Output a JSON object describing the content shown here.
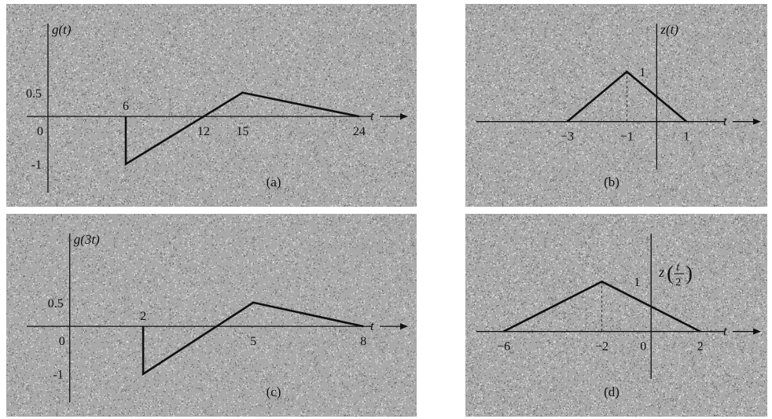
{
  "charts": {
    "a": {
      "caption": "(a)",
      "ylabel": "g(t)",
      "xlabel": "t",
      "x_ticks": [
        {
          "value": 0,
          "label": "0"
        },
        {
          "value": 12,
          "label": "12"
        },
        {
          "value": 15,
          "label": "15"
        },
        {
          "value": 24,
          "label": "24"
        }
      ],
      "y_ticks": [
        {
          "value": 0.5,
          "label": "0.5"
        },
        {
          "value": -1,
          "label": "-1"
        }
      ],
      "annotations": [
        {
          "x": 6,
          "y": 0,
          "label": "6"
        }
      ]
    },
    "b": {
      "caption": "(b)",
      "ylabel": "z(t)",
      "xlabel": "t",
      "x_ticks": [
        {
          "value": -3,
          "label": "−3"
        },
        {
          "value": -1,
          "label": "−1"
        },
        {
          "value": 1,
          "label": "1"
        }
      ],
      "y_ticks": [
        {
          "value": 1,
          "label": "1"
        }
      ]
    },
    "c": {
      "caption": "(c)",
      "ylabel": "g(3t)",
      "xlabel": "t",
      "x_ticks": [
        {
          "value": 0,
          "label": "0"
        },
        {
          "value": 5,
          "label": "5"
        },
        {
          "value": 8,
          "label": "8"
        }
      ],
      "y_ticks": [
        {
          "value": 0.5,
          "label": "0.5"
        },
        {
          "value": -1,
          "label": "-1"
        }
      ],
      "annotations": [
        {
          "x": 2,
          "y": 0,
          "label": "2"
        }
      ]
    },
    "d": {
      "caption": "(d)",
      "ylabel_parts": {
        "fn": "z",
        "num": "t",
        "den": "2"
      },
      "xlabel": "t",
      "x_ticks": [
        {
          "value": -6,
          "label": "−6"
        },
        {
          "value": -2,
          "label": "−2"
        },
        {
          "value": 0,
          "label": "0"
        },
        {
          "value": 2,
          "label": "2"
        }
      ],
      "y_ticks": [
        {
          "value": 1,
          "label": "1"
        }
      ]
    }
  },
  "chart_data": [
    {
      "type": "line",
      "panel": "a",
      "series": [
        {
          "x": [
            6,
            6,
            15,
            24
          ],
          "y": [
            0,
            -1,
            0.5,
            0
          ]
        }
      ],
      "xlim": [
        -2,
        28
      ],
      "ylim": [
        -1.6,
        2.2
      ]
    },
    {
      "type": "line",
      "panel": "b",
      "series": [
        {
          "x": [
            -3,
            -1,
            1
          ],
          "y": [
            0,
            1,
            0
          ]
        }
      ],
      "xlim": [
        -6.2,
        3.6
      ],
      "ylim": [
        -0.95,
        2.2
      ]
    },
    {
      "type": "line",
      "panel": "c",
      "series": [
        {
          "x": [
            2,
            2,
            5,
            8
          ],
          "y": [
            0,
            -1,
            0.5,
            0
          ]
        }
      ],
      "xlim": [
        -1.3,
        9.3
      ],
      "ylim": [
        -1.6,
        2.2
      ]
    },
    {
      "type": "line",
      "panel": "d",
      "series": [
        {
          "x": [
            -6,
            -2,
            2
          ],
          "y": [
            0,
            1,
            0
          ]
        }
      ],
      "xlim": [
        -7.3,
        4.6
      ],
      "ylim": [
        -0.95,
        2.2
      ]
    }
  ],
  "style": {
    "background": "#a9a9a9",
    "ink": "#111111"
  }
}
